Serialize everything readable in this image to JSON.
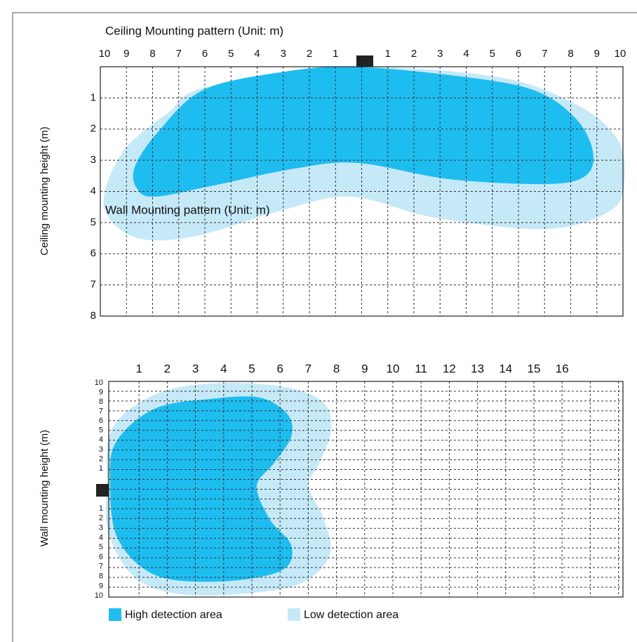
{
  "ceiling": {
    "title": "Ceiling Mounting pattern (Unit: m)",
    "y_label": "Ceiling mounting height (m)",
    "x_labels_left": [
      "10",
      "9",
      "8",
      "7",
      "6",
      "5",
      "4",
      "3",
      "2",
      "1"
    ],
    "x_labels_right": [
      "1",
      "2",
      "3",
      "4",
      "5",
      "6",
      "7",
      "8",
      "9",
      "10"
    ],
    "y_labels": [
      "1",
      "2",
      "3",
      "4",
      "5",
      "6",
      "7",
      "8"
    ]
  },
  "wall": {
    "title": "Wall Mounting pattern (Unit: m)",
    "y_label": "Wall mounting height (m)",
    "x_labels": [
      "1",
      "2",
      "3",
      "4",
      "5",
      "6",
      "7",
      "8",
      "9",
      "10",
      "11",
      "12",
      "13",
      "14",
      "15",
      "16"
    ],
    "y_labels_up": [
      "10",
      "9",
      "8",
      "7",
      "6",
      "5",
      "4",
      "3",
      "2",
      "1"
    ],
    "y_labels_down": [
      "1",
      "2",
      "3",
      "4",
      "5",
      "6",
      "7",
      "8",
      "9",
      "10"
    ]
  },
  "legend": {
    "high": "High detection area",
    "low": "Low detection area"
  }
}
